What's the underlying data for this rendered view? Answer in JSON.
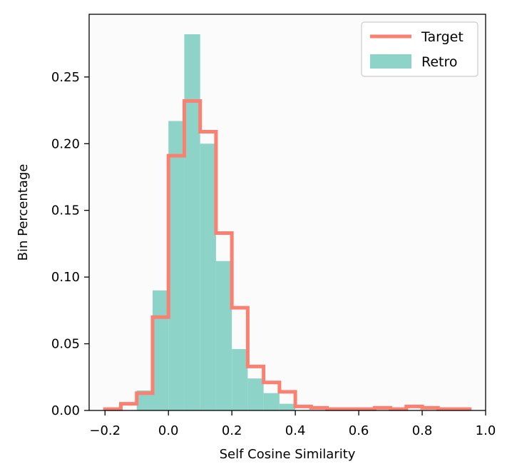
{
  "chart_data": {
    "type": "histogram",
    "xlabel": "Self Cosine Similarity",
    "ylabel": "Bin Percentage",
    "xlim": [
      -0.25,
      1.0
    ],
    "ylim": [
      0.0,
      0.297
    ],
    "xticks": [
      {
        "value": -0.2,
        "label": "−0.2"
      },
      {
        "value": 0.0,
        "label": "0.0"
      },
      {
        "value": 0.2,
        "label": "0.2"
      },
      {
        "value": 0.4,
        "label": "0.4"
      },
      {
        "value": 0.6,
        "label": "0.6"
      },
      {
        "value": 0.8,
        "label": "0.8"
      },
      {
        "value": 1.0,
        "label": "1.0"
      }
    ],
    "yticks": [
      {
        "value": 0.0,
        "label": "0.00"
      },
      {
        "value": 0.05,
        "label": "0.05"
      },
      {
        "value": 0.1,
        "label": "0.10"
      },
      {
        "value": 0.15,
        "label": "0.15"
      },
      {
        "value": 0.2,
        "label": "0.20"
      },
      {
        "value": 0.25,
        "label": "0.25"
      }
    ],
    "grid": false,
    "legend_position": "top-right",
    "plot_background": "#fbfbfb",
    "series": [
      {
        "name": "Retro",
        "style": "filled",
        "color": "#8dd3c7",
        "bins": [
          {
            "x0": -0.1,
            "x1": -0.05,
            "y": 0.015
          },
          {
            "x0": -0.05,
            "x1": 0.0,
            "y": 0.09
          },
          {
            "x0": 0.0,
            "x1": 0.05,
            "y": 0.217
          },
          {
            "x0": 0.05,
            "x1": 0.1,
            "y": 0.282
          },
          {
            "x0": 0.1,
            "x1": 0.15,
            "y": 0.2
          },
          {
            "x0": 0.15,
            "x1": 0.2,
            "y": 0.112
          },
          {
            "x0": 0.2,
            "x1": 0.25,
            "y": 0.046
          },
          {
            "x0": 0.25,
            "x1": 0.3,
            "y": 0.024
          },
          {
            "x0": 0.3,
            "x1": 0.35,
            "y": 0.013
          },
          {
            "x0": 0.35,
            "x1": 0.4,
            "y": 0.005
          }
        ]
      },
      {
        "name": "Target",
        "style": "step",
        "color": "#fa8072",
        "bins": [
          {
            "x0": -0.2,
            "x1": -0.15,
            "y": 0.001
          },
          {
            "x0": -0.15,
            "x1": -0.1,
            "y": 0.005
          },
          {
            "x0": -0.1,
            "x1": -0.05,
            "y": 0.013
          },
          {
            "x0": -0.05,
            "x1": 0.0,
            "y": 0.07
          },
          {
            "x0": 0.0,
            "x1": 0.05,
            "y": 0.191
          },
          {
            "x0": 0.05,
            "x1": 0.1,
            "y": 0.232
          },
          {
            "x0": 0.1,
            "x1": 0.15,
            "y": 0.209
          },
          {
            "x0": 0.15,
            "x1": 0.2,
            "y": 0.133
          },
          {
            "x0": 0.2,
            "x1": 0.25,
            "y": 0.077
          },
          {
            "x0": 0.25,
            "x1": 0.3,
            "y": 0.033
          },
          {
            "x0": 0.3,
            "x1": 0.35,
            "y": 0.021
          },
          {
            "x0": 0.35,
            "x1": 0.4,
            "y": 0.014
          },
          {
            "x0": 0.4,
            "x1": 0.45,
            "y": 0.003
          },
          {
            "x0": 0.45,
            "x1": 0.5,
            "y": 0.002
          },
          {
            "x0": 0.5,
            "x1": 0.55,
            "y": 0.001
          },
          {
            "x0": 0.55,
            "x1": 0.6,
            "y": 0.001
          },
          {
            "x0": 0.6,
            "x1": 0.65,
            "y": 0.001
          },
          {
            "x0": 0.65,
            "x1": 0.7,
            "y": 0.002
          },
          {
            "x0": 0.7,
            "x1": 0.75,
            "y": 0.001
          },
          {
            "x0": 0.75,
            "x1": 0.8,
            "y": 0.003
          },
          {
            "x0": 0.8,
            "x1": 0.85,
            "y": 0.002
          },
          {
            "x0": 0.85,
            "x1": 0.9,
            "y": 0.001
          },
          {
            "x0": 0.9,
            "x1": 0.95,
            "y": 0.001
          }
        ]
      }
    ],
    "legend": [
      {
        "name": "Target",
        "kind": "line",
        "color": "#fa8072"
      },
      {
        "name": "Retro",
        "kind": "patch",
        "color": "#8dd3c7"
      }
    ]
  }
}
